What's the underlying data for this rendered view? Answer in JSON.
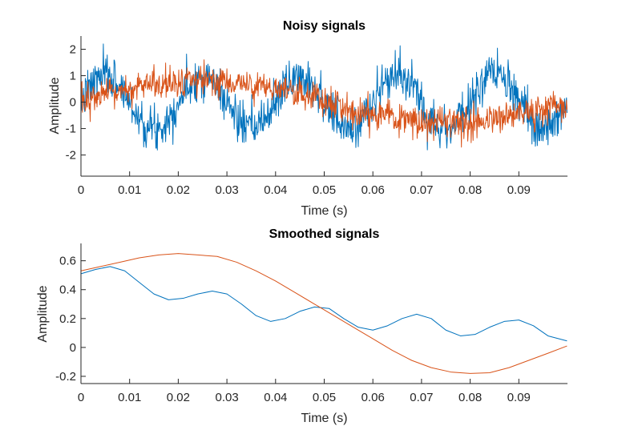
{
  "colors": {
    "blue": "#0072BD",
    "orange": "#D95319",
    "axis": "#262626"
  },
  "chart_data": [
    {
      "type": "line",
      "title": "Noisy signals",
      "xlabel": "Time (s)",
      "ylabel": "Amplitude",
      "xlim": [
        0,
        0.1
      ],
      "ylim": [
        -2.8,
        2.5
      ],
      "xticks": [
        0,
        0.01,
        0.02,
        0.03,
        0.04,
        0.05,
        0.06,
        0.07,
        0.08,
        0.09
      ],
      "xtick_labels": [
        "0",
        "0.01",
        "0.02",
        "0.03",
        "0.04",
        "0.05",
        "0.06",
        "0.07",
        "0.08",
        "0.09"
      ],
      "yticks": [
        -2,
        -1,
        0,
        1,
        2
      ],
      "ytick_labels": [
        "-2",
        "-1",
        "0",
        "1",
        "2"
      ],
      "grid": false,
      "series": [
        {
          "color": "#0072BD",
          "model": "noisy",
          "freq": 50,
          "amp": 1.0,
          "phase": 0.0,
          "noise": 0.4,
          "seed": 7
        },
        {
          "color": "#D95319",
          "model": "noisy",
          "freq": 10,
          "amp": 0.8,
          "phase": 0.0,
          "noise": 0.3,
          "seed": 13
        }
      ],
      "x_start": 0,
      "x_end": 0.0999,
      "n_points": 1000
    },
    {
      "type": "line",
      "title": "Smoothed signals",
      "xlabel": "Time (s)",
      "ylabel": "Amplitude",
      "xlim": [
        0,
        0.1
      ],
      "ylim": [
        -0.25,
        0.72
      ],
      "xticks": [
        0,
        0.01,
        0.02,
        0.03,
        0.04,
        0.05,
        0.06,
        0.07,
        0.08,
        0.09
      ],
      "xtick_labels": [
        "0",
        "0.01",
        "0.02",
        "0.03",
        "0.04",
        "0.05",
        "0.06",
        "0.07",
        "0.08",
        "0.09"
      ],
      "yticks": [
        -0.2,
        0,
        0.2,
        0.4,
        0.6
      ],
      "ytick_labels": [
        "-0.2",
        "0",
        "0.2",
        "0.4",
        "0.6"
      ],
      "grid": false,
      "series": [
        {
          "color": "#0072BD",
          "x": [
            0,
            0.003,
            0.006,
            0.009,
            0.012,
            0.015,
            0.018,
            0.021,
            0.024,
            0.027,
            0.03,
            0.033,
            0.036,
            0.039,
            0.042,
            0.045,
            0.048,
            0.051,
            0.054,
            0.057,
            0.06,
            0.063,
            0.066,
            0.069,
            0.072,
            0.075,
            0.078,
            0.081,
            0.084,
            0.087,
            0.09,
            0.093,
            0.096,
            0.0999
          ],
          "y": [
            0.51,
            0.54,
            0.56,
            0.53,
            0.45,
            0.37,
            0.33,
            0.34,
            0.37,
            0.39,
            0.37,
            0.3,
            0.22,
            0.18,
            0.2,
            0.25,
            0.28,
            0.27,
            0.2,
            0.14,
            0.12,
            0.15,
            0.2,
            0.23,
            0.2,
            0.12,
            0.08,
            0.09,
            0.14,
            0.18,
            0.19,
            0.15,
            0.08,
            0.045
          ]
        },
        {
          "color": "#D95319",
          "x": [
            0,
            0.004,
            0.008,
            0.012,
            0.016,
            0.02,
            0.024,
            0.028,
            0.032,
            0.036,
            0.04,
            0.044,
            0.048,
            0.052,
            0.056,
            0.06,
            0.064,
            0.068,
            0.072,
            0.076,
            0.08,
            0.084,
            0.088,
            0.092,
            0.096,
            0.0999
          ],
          "y": [
            0.53,
            0.56,
            0.59,
            0.62,
            0.64,
            0.65,
            0.64,
            0.63,
            0.59,
            0.53,
            0.46,
            0.38,
            0.3,
            0.22,
            0.14,
            0.06,
            -0.02,
            -0.09,
            -0.14,
            -0.17,
            -0.18,
            -0.175,
            -0.14,
            -0.09,
            -0.04,
            0.01
          ]
        }
      ]
    }
  ]
}
